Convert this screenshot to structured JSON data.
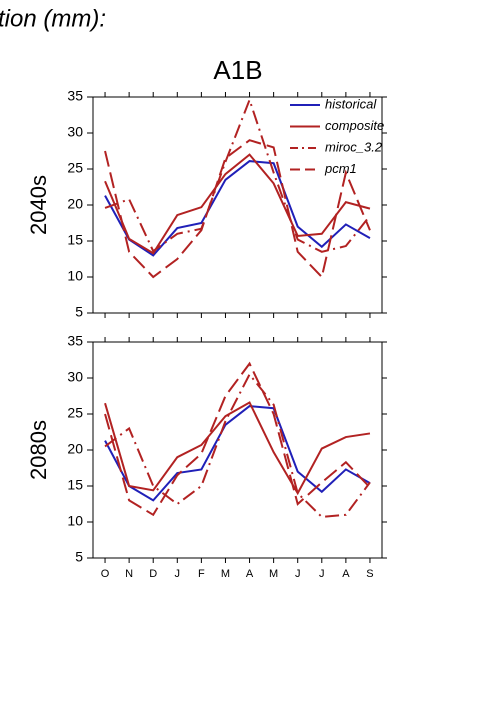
{
  "page_title": "tion (mm):",
  "chart_data": {
    "type": "line",
    "title": "A1B",
    "categories": [
      "O",
      "N",
      "D",
      "J",
      "F",
      "M",
      "A",
      "M",
      "J",
      "J",
      "A",
      "S"
    ],
    "ylim": [
      5,
      35
    ],
    "yticks": [
      5,
      10,
      15,
      20,
      25,
      30,
      35
    ],
    "legend": "upper right",
    "series": [
      {
        "name": "historical",
        "color": "#2020b8",
        "style": "solid"
      },
      {
        "name": "composite",
        "color": "#b22222",
        "style": "solid"
      },
      {
        "name": "miroc_3.2",
        "color": "#b22222",
        "style": "dashdot"
      },
      {
        "name": "pcm1",
        "color": "#b22222",
        "style": "dashed"
      }
    ],
    "panels": [
      {
        "ylabel": "2040s",
        "series": [
          {
            "values": [
              21.3,
              15.2,
              13.0,
              16.8,
              17.5,
              23.5,
              26.1,
              25.8,
              17.0,
              14.2,
              17.3,
              15.4
            ]
          },
          {
            "values": [
              23.3,
              15.3,
              13.3,
              18.6,
              19.7,
              24.3,
              27.0,
              23.0,
              15.7,
              16.0,
              20.4,
              19.5
            ]
          },
          {
            "values": [
              19.6,
              20.8,
              13.6,
              16.0,
              16.7,
              26.0,
              34.6,
              24.5,
              15.2,
              13.5,
              14.3,
              18.5
            ]
          },
          {
            "values": [
              27.5,
              13.5,
              10.0,
              12.5,
              16.5,
              26.5,
              29.0,
              28.0,
              13.5,
              10.0,
              24.5,
              16.5
            ]
          }
        ]
      },
      {
        "ylabel": "2080s",
        "series": [
          {
            "values": [
              21.3,
              15.0,
              13.0,
              16.8,
              17.3,
              23.5,
              26.1,
              25.8,
              17.0,
              14.2,
              17.3,
              15.4
            ]
          },
          {
            "values": [
              26.5,
              15.0,
              14.4,
              19.0,
              20.7,
              24.7,
              26.6,
              19.7,
              14.0,
              20.2,
              21.8,
              22.3
            ]
          },
          {
            "values": [
              20.5,
              23.0,
              15.0,
              12.5,
              15.0,
              24.0,
              30.5,
              26.3,
              14.0,
              10.7,
              11.0,
              15.5
            ]
          },
          {
            "values": [
              25.0,
              13.0,
              11.0,
              16.5,
              19.5,
              27.5,
              32.0,
              25.0,
              12.5,
              15.5,
              18.3,
              14.8
            ]
          }
        ]
      }
    ]
  }
}
